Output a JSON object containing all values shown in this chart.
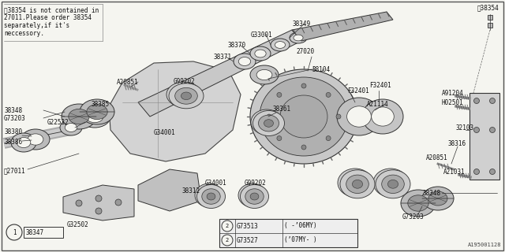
{
  "bg_color": "#f5f5f0",
  "border_color": "#444444",
  "line_color": "#333333",
  "text_color": "#111111",
  "image_id": "A195001128",
  "note_text": "‸38354 is not contained in\n27011.Please order 38354\nseparately,if it's\nneccessory.",
  "note2": "‸27011",
  "star38354_label": "‸38354",
  "fig_w": 6.4,
  "fig_h": 3.2,
  "dpi": 100,
  "legend": [
    {
      "circle": "2",
      "id": "G73513",
      "note": "( -’06MY)"
    },
    {
      "circle": "2",
      "id": "G73527",
      "note": "(’07MY- )"
    }
  ]
}
